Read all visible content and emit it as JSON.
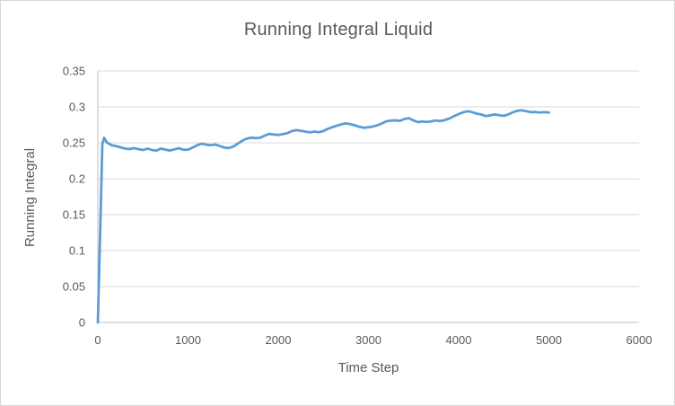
{
  "chart_data": {
    "type": "line",
    "title": "Running Integral Liquid",
    "xlabel": "Time Step",
    "ylabel": "Running Integral",
    "xlim": [
      0,
      6000
    ],
    "ylim": [
      0,
      0.35
    ],
    "x_ticks": [
      0,
      1000,
      2000,
      3000,
      4000,
      5000,
      6000
    ],
    "x_tick_labels": [
      "0",
      "1000",
      "2000",
      "3000",
      "4000",
      "5000",
      "6000"
    ],
    "y_ticks": [
      0,
      0.05,
      0.1,
      0.15,
      0.2,
      0.25,
      0.3,
      0.35
    ],
    "y_tick_labels": [
      "0",
      "0.05",
      "0.1",
      "0.15",
      "0.2",
      "0.25",
      "0.3",
      "0.35"
    ],
    "grid": true,
    "legend": false,
    "line_color": "#5B9BD5",
    "gridline_color": "#D9D9D9",
    "axis_color": "#BFBFBF",
    "text_color": "#595959",
    "series": [
      {
        "name": "Running Integral",
        "points": [
          [
            0,
            0
          ],
          [
            25,
            0.12
          ],
          [
            50,
            0.248
          ],
          [
            70,
            0.257
          ],
          [
            100,
            0.2505
          ],
          [
            150,
            0.2468
          ],
          [
            200,
            0.2455
          ],
          [
            250,
            0.2437
          ],
          [
            300,
            0.2421
          ],
          [
            350,
            0.2412
          ],
          [
            400,
            0.2425
          ],
          [
            450,
            0.2412
          ],
          [
            500,
            0.24
          ],
          [
            550,
            0.242
          ],
          [
            600,
            0.24
          ],
          [
            650,
            0.2392
          ],
          [
            700,
            0.242
          ],
          [
            750,
            0.2405
          ],
          [
            800,
            0.2392
          ],
          [
            850,
            0.241
          ],
          [
            900,
            0.2425
          ],
          [
            950,
            0.2402
          ],
          [
            1000,
            0.2405
          ],
          [
            1050,
            0.2433
          ],
          [
            1100,
            0.2466
          ],
          [
            1150,
            0.2487
          ],
          [
            1200,
            0.2475
          ],
          [
            1250,
            0.2466
          ],
          [
            1300,
            0.2476
          ],
          [
            1350,
            0.2458
          ],
          [
            1400,
            0.2434
          ],
          [
            1450,
            0.2426
          ],
          [
            1500,
            0.2447
          ],
          [
            1550,
            0.2488
          ],
          [
            1600,
            0.2529
          ],
          [
            1650,
            0.2558
          ],
          [
            1700,
            0.2571
          ],
          [
            1750,
            0.2565
          ],
          [
            1800,
            0.2573
          ],
          [
            1850,
            0.26
          ],
          [
            1900,
            0.2625
          ],
          [
            1950,
            0.2615
          ],
          [
            2000,
            0.261
          ],
          [
            2050,
            0.262
          ],
          [
            2100,
            0.2634
          ],
          [
            2150,
            0.2662
          ],
          [
            2200,
            0.2676
          ],
          [
            2250,
            0.2668
          ],
          [
            2300,
            0.2656
          ],
          [
            2350,
            0.2646
          ],
          [
            2400,
            0.2656
          ],
          [
            2450,
            0.2648
          ],
          [
            2500,
            0.2664
          ],
          [
            2550,
            0.2695
          ],
          [
            2600,
            0.2718
          ],
          [
            2650,
            0.2739
          ],
          [
            2700,
            0.2758
          ],
          [
            2750,
            0.277
          ],
          [
            2800,
            0.276
          ],
          [
            2850,
            0.2742
          ],
          [
            2900,
            0.2722
          ],
          [
            2950,
            0.271
          ],
          [
            3000,
            0.2718
          ],
          [
            3050,
            0.2728
          ],
          [
            3100,
            0.2745
          ],
          [
            3150,
            0.277
          ],
          [
            3200,
            0.28
          ],
          [
            3250,
            0.281
          ],
          [
            3300,
            0.2812
          ],
          [
            3350,
            0.2806
          ],
          [
            3400,
            0.2832
          ],
          [
            3450,
            0.2843
          ],
          [
            3500,
            0.281
          ],
          [
            3550,
            0.2788
          ],
          [
            3600,
            0.2798
          ],
          [
            3650,
            0.279
          ],
          [
            3700,
            0.28
          ],
          [
            3750,
            0.281
          ],
          [
            3800,
            0.2804
          ],
          [
            3850,
            0.2818
          ],
          [
            3900,
            0.284
          ],
          [
            3950,
            0.2872
          ],
          [
            4000,
            0.29
          ],
          [
            4050,
            0.2925
          ],
          [
            4100,
            0.294
          ],
          [
            4150,
            0.2928
          ],
          [
            4200,
            0.2905
          ],
          [
            4250,
            0.2895
          ],
          [
            4300,
            0.2872
          ],
          [
            4350,
            0.2882
          ],
          [
            4400,
            0.2895
          ],
          [
            4450,
            0.2882
          ],
          [
            4500,
            0.2876
          ],
          [
            4550,
            0.2895
          ],
          [
            4600,
            0.2925
          ],
          [
            4650,
            0.2945
          ],
          [
            4700,
            0.2953
          ],
          [
            4750,
            0.294
          ],
          [
            4800,
            0.2926
          ],
          [
            4850,
            0.293
          ],
          [
            4900,
            0.2921
          ],
          [
            4950,
            0.2926
          ],
          [
            5000,
            0.2921
          ]
        ]
      }
    ]
  }
}
